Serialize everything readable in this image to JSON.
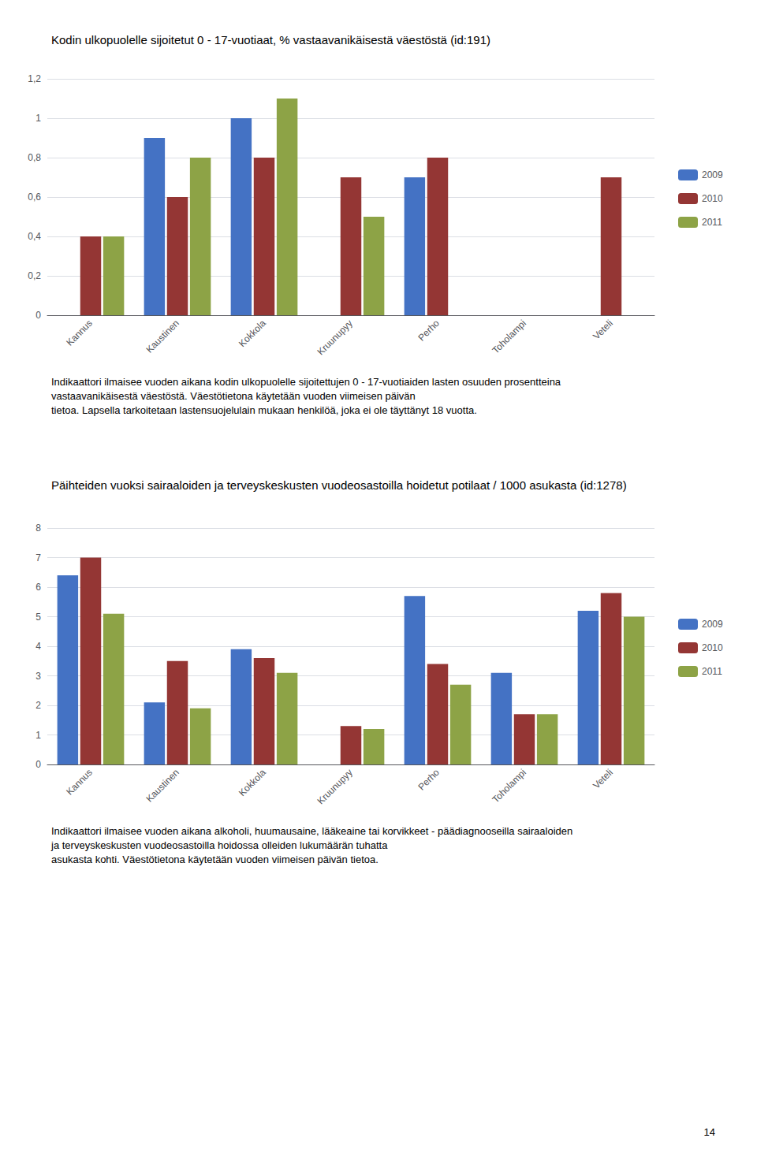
{
  "chart_data": [
    {
      "type": "bar",
      "title": "Kodin ulkopuolelle sijoitetut 0 - 17-vuotiaat, % vastaavanikäisestä väestöstä (id:191)",
      "categories": [
        "Kannus",
        "Kaustinen",
        "Kokkola",
        "Kruunupyy",
        "Perho",
        "Toholampi",
        "Veteli"
      ],
      "series": [
        {
          "name": "2009",
          "color": "#4472C4",
          "values": [
            0,
            0.9,
            1.0,
            0,
            0.7,
            0,
            0
          ]
        },
        {
          "name": "2010",
          "color": "#943634",
          "values": [
            0.4,
            0.6,
            0.8,
            0.7,
            0.8,
            0,
            0.7
          ]
        },
        {
          "name": "2011",
          "color": "#8DA346",
          "values": [
            0.4,
            0.8,
            1.1,
            0.5,
            0,
            0,
            0
          ]
        }
      ],
      "ylim": [
        0,
        1.2
      ],
      "yticks": [
        0,
        {
          "value": 0.2,
          "label": "0,2"
        },
        {
          "value": 0.4,
          "label": "0,4"
        },
        {
          "value": 0.6,
          "label": "0,6"
        },
        {
          "value": 0.8,
          "label": "0,8"
        },
        1,
        {
          "value": 1.2,
          "label": "1,2"
        }
      ],
      "grid": true,
      "legend": "right",
      "annotations": [
        "Indikaattori ilmaisee vuoden aikana kodin ulkopuolelle sijoitettujen 0 - 17-vuotiaiden lasten osuuden prosentteina vastaavanikäisestä väestöstä. Väestötietona käytetään vuoden viimeisen päivän",
        "tietoa. Lapsella tarkoitetaan lastensuojelulain mukaan henkilöä, joka ei ole täyttänyt 18 vuotta."
      ]
    },
    {
      "type": "bar",
      "title": "Päihteiden vuoksi sairaaloiden ja terveyskeskusten vuodeosastoilla hoidetut potilaat / 1000 asukasta (id:1278)",
      "categories": [
        "Kannus",
        "Kaustinen",
        "Kokkola",
        "Kruunupyy",
        "Perho",
        "Toholampi",
        "Veteli"
      ],
      "series": [
        {
          "name": "2009",
          "color": "#4472C4",
          "values": [
            6.4,
            2.1,
            3.9,
            0,
            5.7,
            3.1,
            5.2
          ]
        },
        {
          "name": "2010",
          "color": "#943634",
          "values": [
            7.0,
            3.5,
            3.6,
            1.3,
            3.4,
            1.7,
            5.8
          ]
        },
        {
          "name": "2011",
          "color": "#8DA346",
          "values": [
            5.1,
            1.9,
            3.1,
            1.2,
            2.7,
            1.7,
            5.0
          ]
        }
      ],
      "ylim": [
        0,
        8
      ],
      "yticks": [
        0,
        1,
        2,
        3,
        4,
        5,
        6,
        7,
        8
      ],
      "grid": true,
      "legend": "right",
      "annotations": [
        "Indikaattori ilmaisee vuoden aikana alkoholi, huumausaine, lääkeaine tai korvikkeet - päädiagnooseilla sairaaloiden ja terveyskeskusten vuodeosastoilla hoidossa olleiden lukumäärän tuhatta",
        "asukasta kohti. Väestötietona käytetään vuoden viimeisen päivän tietoa."
      ]
    }
  ],
  "footer": "14"
}
